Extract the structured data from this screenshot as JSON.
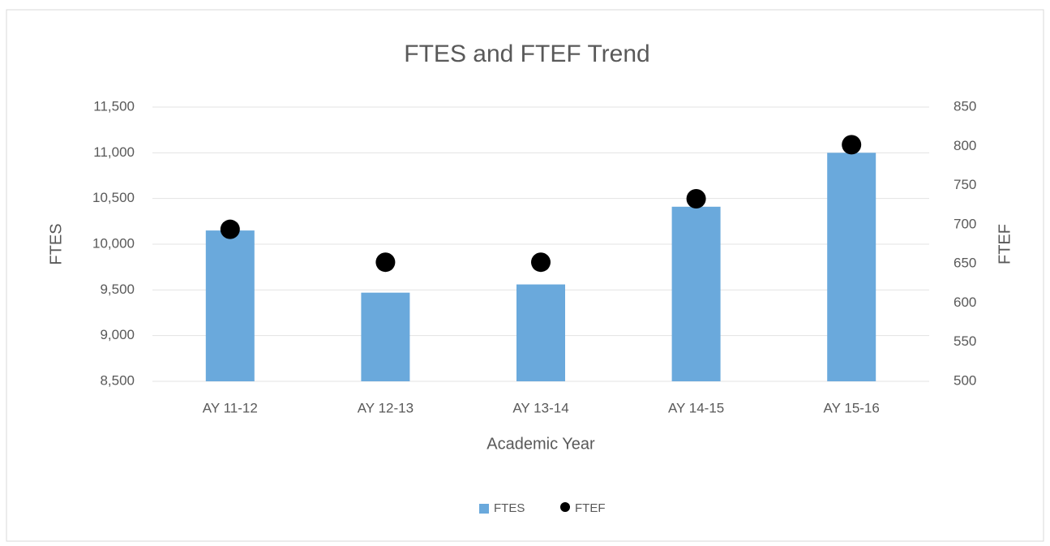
{
  "chart_data": {
    "type": "bar",
    "title": "FTES and FTEF Trend",
    "xlabel": "Academic Year",
    "ylabel": "FTES",
    "y2label": "FTEF",
    "categories": [
      "AY 11-12",
      "AY 12-13",
      "AY 13-14",
      "AY 14-15",
      "AY 15-16"
    ],
    "series": [
      {
        "name": "FTES",
        "type": "bar",
        "color": "#6aa9dc",
        "values": [
          10150,
          9470,
          9560,
          10410,
          11000
        ]
      },
      {
        "name": "FTEF",
        "type": "scatter",
        "axis": "y2",
        "color": "#000000",
        "values": [
          694,
          652,
          652,
          733,
          802
        ]
      }
    ],
    "ylim": [
      8500,
      11500
    ],
    "yticks": [
      {
        "value": 8500,
        "label": "8,500"
      },
      {
        "value": 9000,
        "label": "9,000"
      },
      {
        "value": 9500,
        "label": "9,500"
      },
      {
        "value": 10000,
        "label": "10,000"
      },
      {
        "value": 10500,
        "label": "10,500"
      },
      {
        "value": 11000,
        "label": "11,000"
      },
      {
        "value": 11500,
        "label": "11,500"
      }
    ],
    "y2lim": [
      500,
      850
    ],
    "y2ticks": [
      500,
      550,
      600,
      650,
      700,
      750,
      800,
      850
    ],
    "grid": true,
    "legend": "bottom"
  }
}
